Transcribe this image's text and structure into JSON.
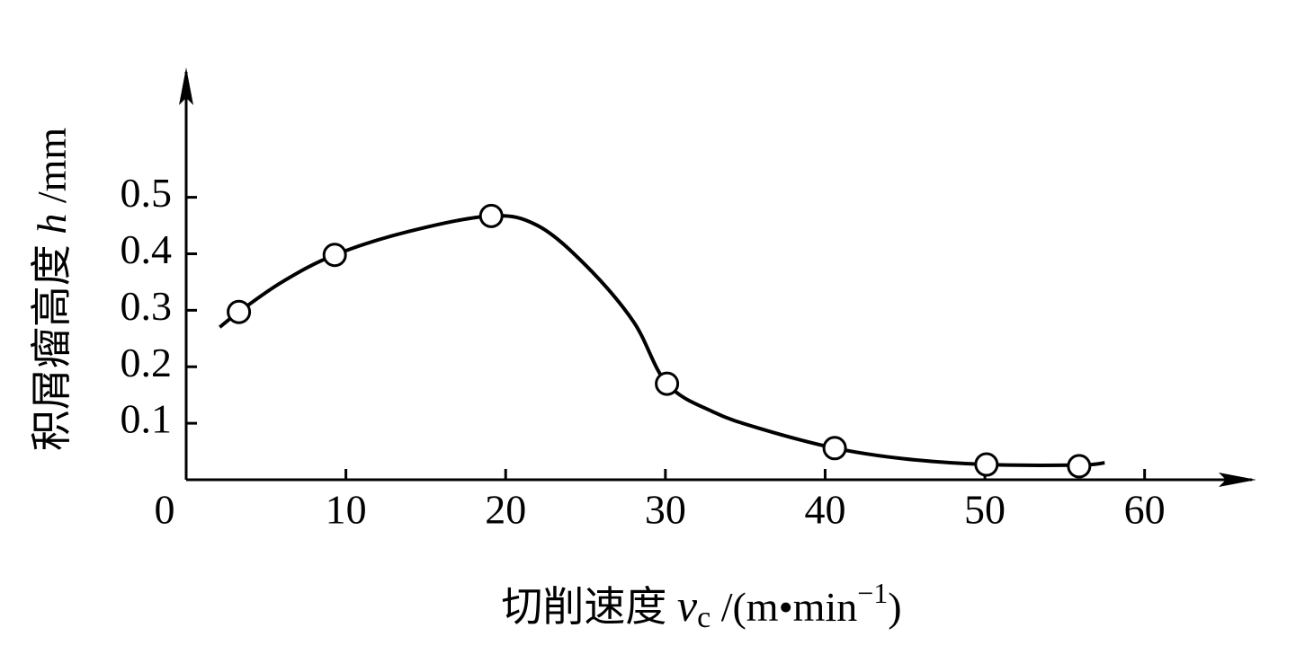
{
  "chart_data": {
    "type": "scatter",
    "x_label": [
      "切削速度",
      "v",
      "c",
      "/(m•min",
      "−1",
      ")"
    ],
    "y_label": [
      "积屑瘤高度",
      "h",
      "/mm"
    ],
    "x": [
      3.3,
      9.3,
      19.1,
      30.1,
      40.6,
      50.1,
      55.9
    ],
    "values": [
      0.297,
      0.398,
      0.467,
      0.17,
      0.056,
      0.027,
      0.024
    ],
    "fit_curve": {
      "x": [
        2.1,
        3.3,
        6,
        9.3,
        14,
        19.1,
        22,
        25,
        28,
        30.1,
        33,
        36,
        40.6,
        45,
        50.1,
        55.9,
        57.5
      ],
      "values": [
        0.27,
        0.297,
        0.35,
        0.398,
        0.44,
        0.467,
        0.45,
        0.38,
        0.28,
        0.17,
        0.12,
        0.09,
        0.056,
        0.037,
        0.027,
        0.026,
        0.03
      ]
    },
    "color": "#000000",
    "xlim": [
      0,
      67
    ],
    "xticks": [
      0,
      10,
      20,
      30,
      40,
      50,
      60
    ],
    "ylim": [
      0,
      0.73
    ],
    "yticks": [
      0.1,
      0.2,
      0.3,
      0.4,
      0.5
    ]
  }
}
